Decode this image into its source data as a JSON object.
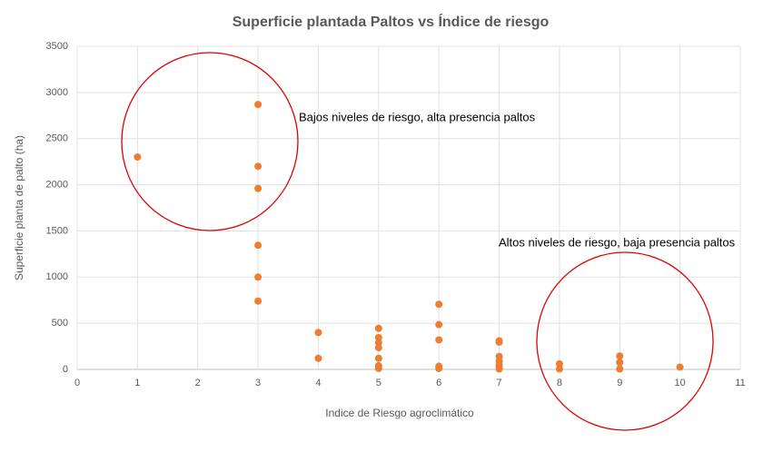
{
  "chart_data": {
    "type": "scatter",
    "title": "Superficie plantada Paltos vs Índice de riesgo",
    "x_label": "Indice de Riesgo agroclimático",
    "y_label": "Superficie planta de palto (ha)",
    "annotations": [
      "Bajos niveles de riesgo, alta presencia paltos",
      "Altos niveles de riesgo, baja presencia paltos"
    ],
    "color": "#ED7D31",
    "x": [
      1,
      3,
      3,
      3,
      3,
      3,
      3,
      4,
      4,
      5,
      5,
      5,
      5,
      5,
      5,
      5,
      6,
      6,
      6,
      6,
      6,
      7,
      7,
      7,
      7,
      7,
      7,
      7,
      8,
      8,
      9,
      9,
      9,
      10
    ],
    "values": [
      2300,
      2870,
      2200,
      1960,
      1345,
      1000,
      740,
      400,
      120,
      445,
      345,
      290,
      235,
      120,
      40,
      10,
      705,
      485,
      320,
      35,
      10,
      310,
      295,
      140,
      90,
      50,
      20,
      5,
      60,
      5,
      145,
      75,
      5,
      25
    ],
    "xlim": [
      0,
      11
    ],
    "xticks": [
      0,
      1,
      2,
      3,
      4,
      5,
      6,
      7,
      8,
      9,
      10,
      11
    ],
    "ylim": [
      0,
      3500
    ],
    "yticks": [
      0,
      500,
      1000,
      1500,
      2000,
      2500,
      3000,
      3500
    ],
    "grid": true
  }
}
